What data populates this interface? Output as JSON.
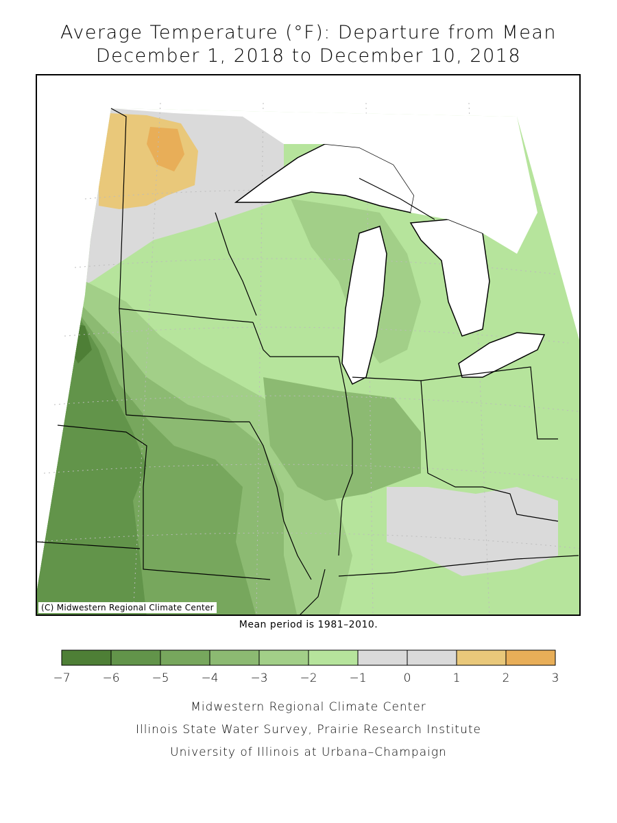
{
  "title_line1": "Average Temperature (°F): Departure from Mean",
  "title_line2": "December 1, 2018 to December 10, 2018",
  "map_copyright": "(C) Midwestern Regional Climate Center",
  "mean_period_note": "Mean period is 1981–2010.",
  "legend": {
    "bins": [
      {
        "from": -7,
        "to": -6,
        "color": "#4e7f36"
      },
      {
        "from": -6,
        "to": -5,
        "color": "#62944a"
      },
      {
        "from": -5,
        "to": -4,
        "color": "#77a75d"
      },
      {
        "from": -4,
        "to": -3,
        "color": "#8cba72"
      },
      {
        "from": -3,
        "to": -2,
        "color": "#a2cf88"
      },
      {
        "from": -2,
        "to": -1,
        "color": "#b6e49c"
      },
      {
        "from": -1,
        "to": 0,
        "color": "#dadada"
      },
      {
        "from": 0,
        "to": 1,
        "color": "#dadada"
      },
      {
        "from": 1,
        "to": 2,
        "color": "#e9c87a"
      },
      {
        "from": 2,
        "to": 3,
        "color": "#e8ae58"
      }
    ],
    "tick_labels": [
      "−7",
      "−6",
      "−5",
      "−4",
      "−3",
      "−2",
      "−1",
      "0",
      "1",
      "2",
      "3"
    ]
  },
  "credits": {
    "line1": "Midwestern Regional Climate Center",
    "line2": "Illinois State Water Survey, Prairie Research Institute",
    "line3": "University of Illinois at Urbana–Champaign"
  },
  "colors": {
    "lake_water": "#ffffff",
    "border": "#000000"
  }
}
